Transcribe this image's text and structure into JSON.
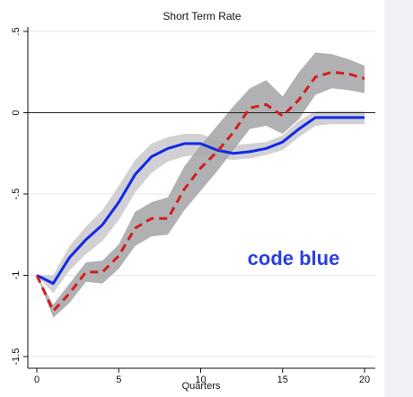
{
  "chart_data": {
    "type": "line",
    "title": "Short Term Rate",
    "xlabel": "Quarters",
    "ylabel": "",
    "xlim": [
      0,
      20
    ],
    "ylim": [
      -1.5,
      0.5
    ],
    "xticks": [
      0,
      5,
      10,
      15,
      20
    ],
    "yticks": [
      -1.5,
      -1,
      -0.5,
      0,
      0.5
    ],
    "ytick_labels": [
      "-1.5",
      "-1",
      "-.5",
      "0",
      ".5"
    ],
    "grid": "horizontal",
    "reference_line": 0,
    "annotation": {
      "text": "code blue",
      "color": "#2b3fe0"
    },
    "colors": {
      "blue_line": "#1428e6",
      "red_line": "#d21e1e",
      "band_light": "#cfcfd2",
      "band_dark": "#a9a9ab",
      "zero_line": "#222222",
      "grid": "#e6e6ea"
    },
    "x": [
      0,
      1,
      2,
      3,
      4,
      5,
      6,
      7,
      8,
      9,
      10,
      11,
      12,
      13,
      14,
      15,
      16,
      17,
      18,
      19,
      20
    ],
    "series": [
      {
        "style": "solid",
        "color": "#1428e6",
        "values": [
          -1.0,
          -1.05,
          -0.89,
          -0.78,
          -0.69,
          -0.55,
          -0.38,
          -0.27,
          -0.22,
          -0.19,
          -0.19,
          -0.23,
          -0.25,
          -0.24,
          -0.22,
          -0.18,
          -0.1,
          -0.03,
          -0.03,
          -0.03,
          -0.03
        ],
        "band_lower": [
          -1.0,
          -1.11,
          -0.97,
          -0.87,
          -0.79,
          -0.66,
          -0.49,
          -0.37,
          -0.3,
          -0.27,
          -0.26,
          -0.28,
          -0.29,
          -0.28,
          -0.26,
          -0.23,
          -0.15,
          -0.08,
          -0.07,
          -0.07,
          -0.07
        ],
        "band_upper": [
          -1.0,
          -1.0,
          -0.82,
          -0.7,
          -0.6,
          -0.45,
          -0.29,
          -0.19,
          -0.15,
          -0.13,
          -0.13,
          -0.17,
          -0.2,
          -0.19,
          -0.18,
          -0.14,
          -0.05,
          0.01,
          0.01,
          0.01,
          0.01
        ]
      },
      {
        "style": "dashed",
        "color": "#d21e1e",
        "values": [
          -1.0,
          -1.22,
          -1.11,
          -0.98,
          -0.98,
          -0.88,
          -0.71,
          -0.65,
          -0.65,
          -0.47,
          -0.34,
          -0.24,
          -0.12,
          0.03,
          0.05,
          -0.02,
          0.08,
          0.22,
          0.25,
          0.24,
          0.21
        ],
        "band_lower": [
          -1.0,
          -1.26,
          -1.17,
          -1.04,
          -1.05,
          -0.96,
          -0.82,
          -0.76,
          -0.75,
          -0.6,
          -0.48,
          -0.36,
          -0.23,
          -0.1,
          -0.08,
          -0.13,
          -0.04,
          0.11,
          0.15,
          0.14,
          0.12
        ],
        "band_upper": [
          -1.0,
          -1.18,
          -1.05,
          -0.92,
          -0.91,
          -0.81,
          -0.61,
          -0.55,
          -0.52,
          -0.33,
          -0.2,
          -0.08,
          0.04,
          0.15,
          0.2,
          0.1,
          0.25,
          0.37,
          0.36,
          0.33,
          0.29
        ]
      }
    ]
  }
}
